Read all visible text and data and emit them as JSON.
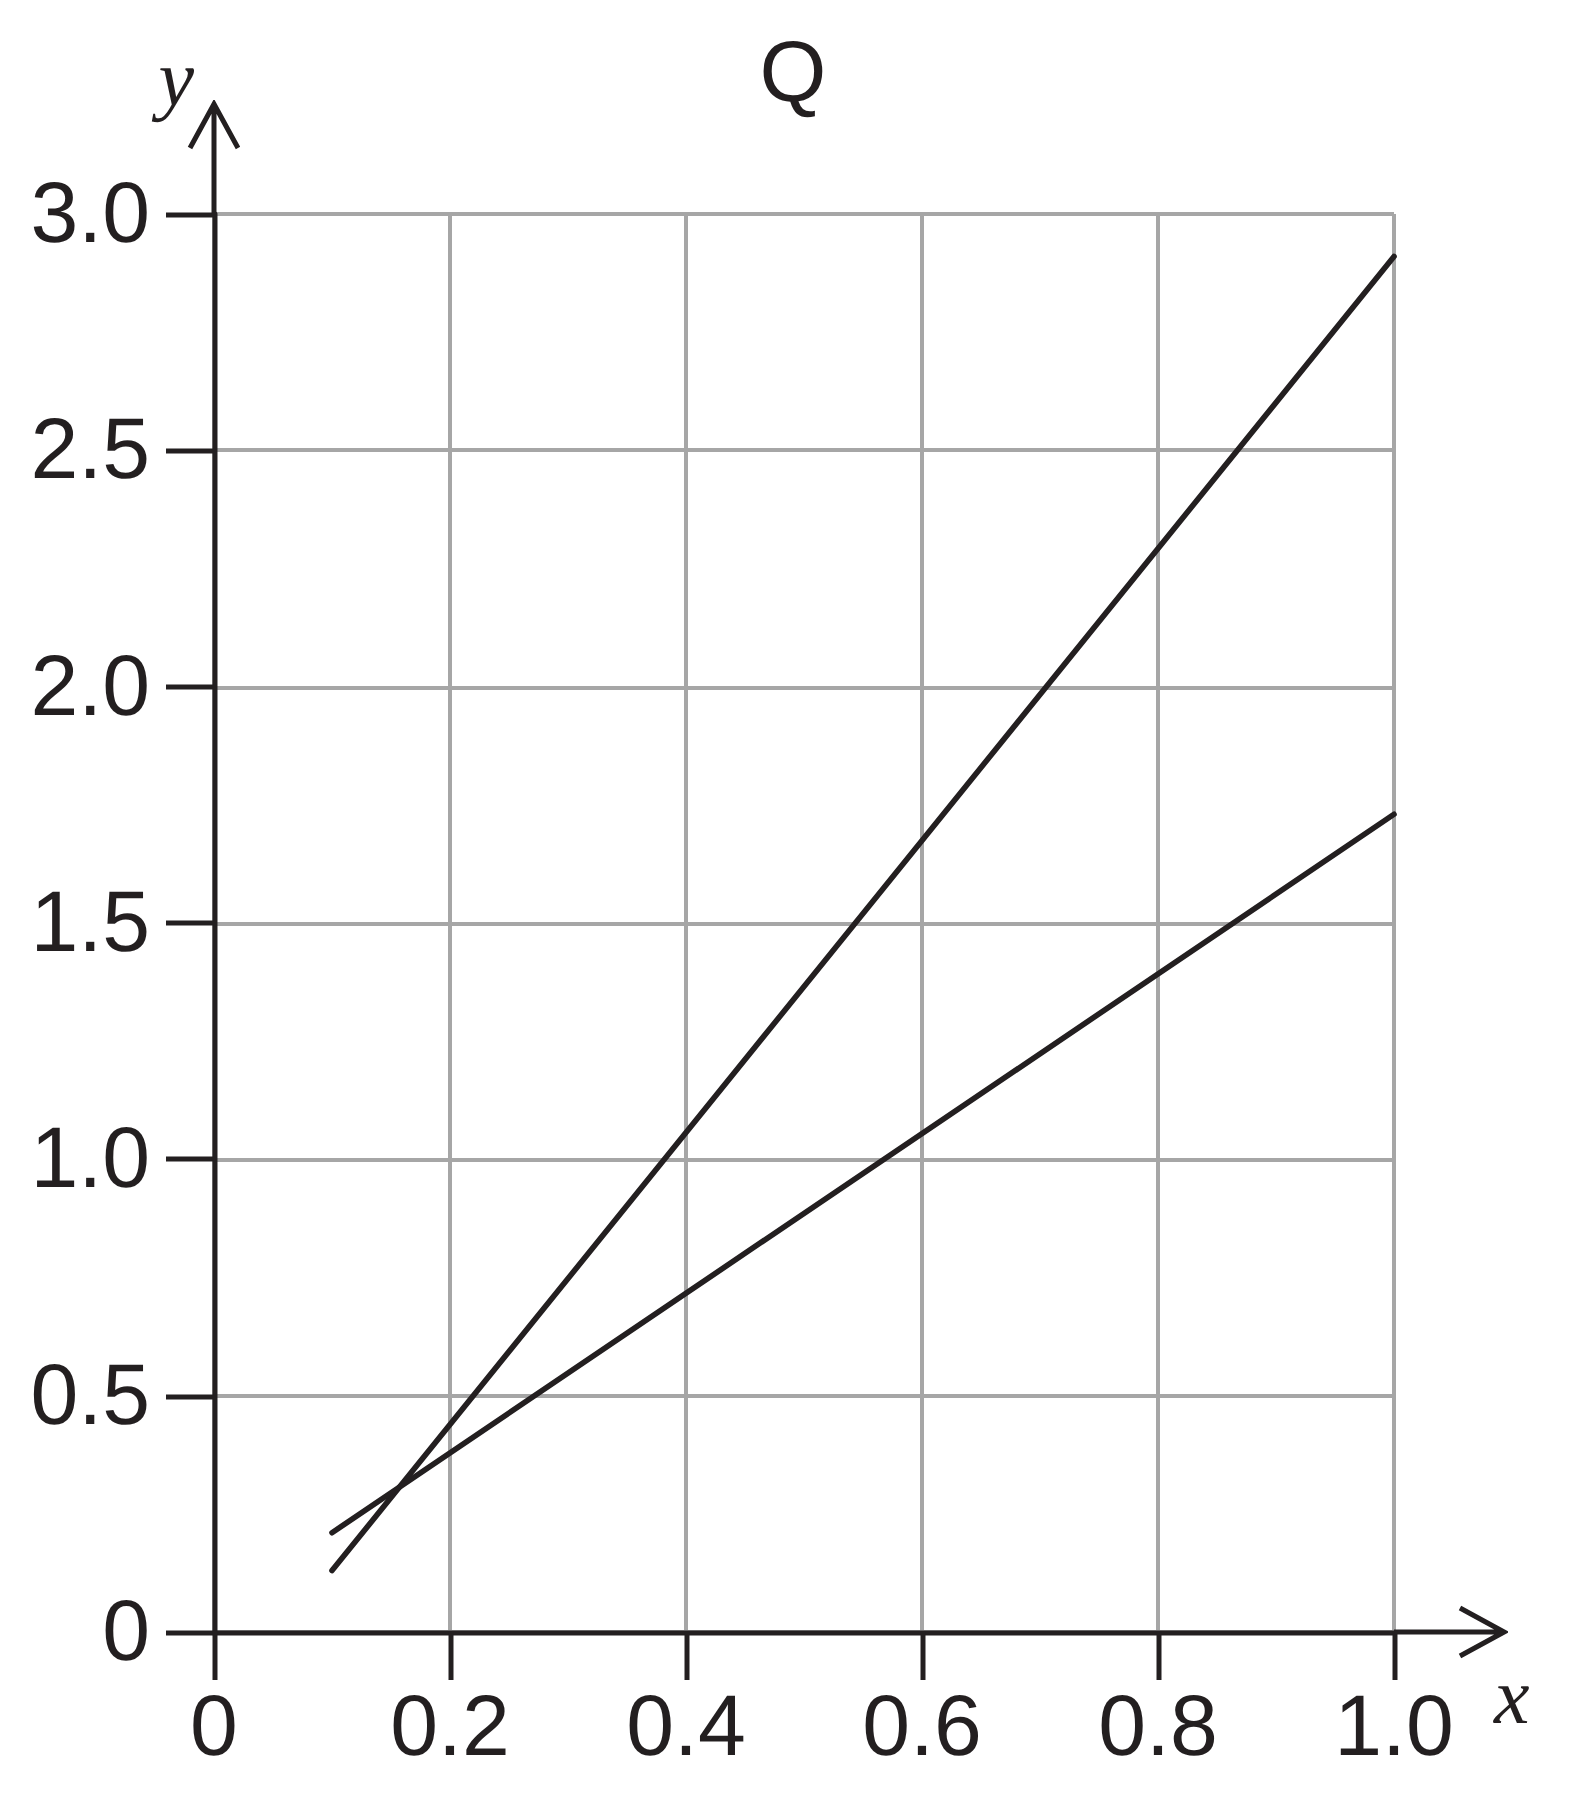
{
  "chart_data": {
    "type": "line",
    "title": "Q",
    "xlabel": "x",
    "ylabel": "y",
    "x": [
      0.1,
      1.0
    ],
    "xlim": [
      0,
      1
    ],
    "xticks": [
      0,
      0.2,
      0.4,
      0.6,
      0.8,
      {
        "value": 1,
        "label": "1.0"
      }
    ],
    "ylim": [
      0,
      3
    ],
    "yticks": [
      0,
      0.5,
      {
        "value": 1,
        "label": "1.0"
      },
      1.5,
      {
        "value": 2,
        "label": "2.0"
      },
      2.5,
      {
        "value": 3,
        "label": "3.0"
      }
    ],
    "series": [
      {
        "color": "#231f20",
        "values": [
          0.13,
          2.91
        ]
      },
      {
        "color": "#231f20",
        "values": [
          0.21,
          1.73
        ]
      }
    ],
    "grid": true,
    "marker": "none",
    "line_style": "solid"
  }
}
